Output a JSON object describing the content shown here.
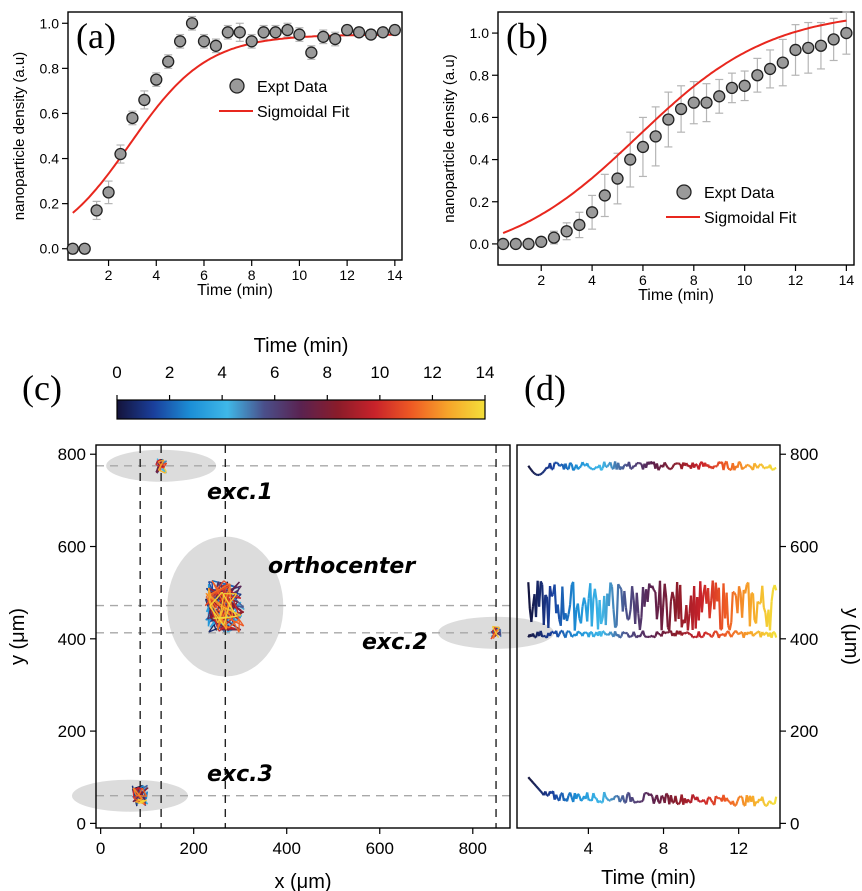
{
  "chart_data": [
    {
      "panel": "(a)",
      "type": "scatter",
      "xlabel": "Time (min)",
      "ylabel": "nanoparticle density (a.u)",
      "xlim": [
        0.3,
        14.3
      ],
      "ylim": [
        -0.05,
        1.05
      ],
      "xticks": [
        2,
        4,
        6,
        8,
        10,
        12,
        14
      ],
      "yticks": [
        0.0,
        0.2,
        0.4,
        0.6,
        0.8,
        1.0
      ],
      "ytick_labels": [
        "0.0",
        "0.2",
        "0.4",
        "0.6",
        "0.8",
        "1.0"
      ],
      "legend": [
        "Expt Data",
        "Sigmoidal Fit"
      ],
      "legend_position": "right",
      "series": [
        {
          "name": "Expt Data",
          "x": [
            0.5,
            1.0,
            1.5,
            2.0,
            2.5,
            3.0,
            3.5,
            4.0,
            4.5,
            5.0,
            5.5,
            6.0,
            6.5,
            7.0,
            7.5,
            8.0,
            8.5,
            9.0,
            9.5,
            10.0,
            10.5,
            11.0,
            11.5,
            12.0,
            12.5,
            13.0,
            13.5,
            14.0
          ],
          "y": [
            0.0,
            0.0,
            0.17,
            0.25,
            0.42,
            0.58,
            0.66,
            0.75,
            0.83,
            0.92,
            1.0,
            0.92,
            0.9,
            0.96,
            0.96,
            0.92,
            0.96,
            0.96,
            0.97,
            0.95,
            0.87,
            0.94,
            0.93,
            0.97,
            0.96,
            0.95,
            0.96,
            0.97
          ],
          "err": [
            0.01,
            0.02,
            0.04,
            0.05,
            0.04,
            0.03,
            0.04,
            0.03,
            0.03,
            0.03,
            0.03,
            0.03,
            0.03,
            0.03,
            0.04,
            0.03,
            0.03,
            0.03,
            0.03,
            0.03,
            0.03,
            0.03,
            0.03,
            0.02,
            0.02,
            0.02,
            0.02,
            0.02
          ]
        },
        {
          "name": "Sigmoidal Fit",
          "fit": {
            "base": -0.02,
            "max": 0.95,
            "x0": 2.9,
            "rate": 0.62
          }
        }
      ]
    },
    {
      "panel": "(b)",
      "type": "scatter",
      "xlabel": "Time (min)",
      "ylabel": "nanoparticle density (a.u)",
      "xlim": [
        0.3,
        14.3
      ],
      "ylim": [
        -0.1,
        1.1
      ],
      "xticks": [
        2,
        4,
        6,
        8,
        10,
        12,
        14
      ],
      "yticks": [
        0.0,
        0.2,
        0.4,
        0.6,
        0.8,
        1.0
      ],
      "ytick_labels": [
        "0.0",
        "0.2",
        "0.4",
        "0.6",
        "0.8",
        "1.0"
      ],
      "legend": [
        "Expt Data",
        "Sigmoidal Fit"
      ],
      "legend_position": "bottom-right",
      "series": [
        {
          "name": "Expt Data",
          "x": [
            0.5,
            1.0,
            1.5,
            2.0,
            2.5,
            3.0,
            3.5,
            4.0,
            4.5,
            5.0,
            5.5,
            6.0,
            6.5,
            7.0,
            7.5,
            8.0,
            8.5,
            9.0,
            9.5,
            10.0,
            10.5,
            11.0,
            11.5,
            12.0,
            12.5,
            13.0,
            13.5,
            14.0
          ],
          "y": [
            0.0,
            0.0,
            0.0,
            0.01,
            0.03,
            0.06,
            0.09,
            0.15,
            0.23,
            0.31,
            0.4,
            0.46,
            0.51,
            0.59,
            0.64,
            0.67,
            0.67,
            0.7,
            0.74,
            0.75,
            0.8,
            0.83,
            0.86,
            0.92,
            0.93,
            0.94,
            0.97,
            1.0
          ],
          "err": [
            0.01,
            0.01,
            0.01,
            0.02,
            0.03,
            0.04,
            0.06,
            0.08,
            0.1,
            0.12,
            0.13,
            0.14,
            0.14,
            0.13,
            0.11,
            0.1,
            0.09,
            0.08,
            0.07,
            0.07,
            0.08,
            0.09,
            0.11,
            0.12,
            0.12,
            0.11,
            0.1,
            0.1
          ]
        },
        {
          "name": "Sigmoidal Fit",
          "fit": {
            "base": -0.09,
            "max": 1.11,
            "x0": 5.8,
            "rate": 0.38
          }
        }
      ]
    },
    {
      "panel": "(c)",
      "type": "line",
      "xlabel": "x (μm)",
      "ylabel": "y (μm)",
      "xlim": [
        -10,
        880
      ],
      "ylim": [
        -10,
        820
      ],
      "xticks": [
        0,
        200,
        400,
        600,
        800
      ],
      "yticks": [
        0,
        200,
        400,
        600,
        800
      ],
      "colorbar": {
        "label": "Time (min)",
        "ticks": [
          0,
          2,
          4,
          6,
          8,
          10,
          12,
          14
        ],
        "range": [
          0,
          14
        ]
      },
      "annotations": [
        "exc.1",
        "orthocenter",
        "exc.2",
        "exc.3"
      ],
      "guide_lines_x": [
        85,
        130,
        268,
        850
      ],
      "guide_lines_y": [
        775,
        472,
        413,
        60
      ],
      "clusters": [
        {
          "label": "exc.1",
          "x": 130,
          "y": 775
        },
        {
          "label": "orthocenter",
          "x": 268,
          "y": 470
        },
        {
          "label": "exc.2",
          "x": 850,
          "y": 413
        },
        {
          "label": "exc.3",
          "x": 85,
          "y": 60
        }
      ]
    },
    {
      "panel": "(d)",
      "type": "line",
      "xlabel": "Time (min)",
      "ylabel": "y (μm)",
      "xlim": [
        0.2,
        14.2
      ],
      "ylim": [
        -10,
        820
      ],
      "xticks": [
        4,
        8,
        12
      ],
      "yticks": [
        0,
        200,
        400,
        600,
        800
      ],
      "series": [
        {
          "label": "exc.1",
          "y_mean": 775
        },
        {
          "label": "orthocenter",
          "y_mean": 472
        },
        {
          "label": "exc.2",
          "y_mean": 410
        },
        {
          "label": "exc.3",
          "y_mean": 60
        }
      ]
    }
  ],
  "colors": {
    "fit_line": "#e8271e",
    "marker_fill": "#9a9a9a",
    "marker_stroke": "#222222",
    "error_bar": "#b5b5b5",
    "cluster_fill": "#dcdcdc",
    "guide_vertical": "#222222",
    "guide_horizontal": "#a8a8a8",
    "colormap": [
      "#14133a",
      "#1a3f9c",
      "#1c8fd6",
      "#3fb8e8",
      "#4a4f8a",
      "#5a2250",
      "#8a1c2a",
      "#c8222a",
      "#ee5a24",
      "#f7a52a",
      "#f3df3a"
    ]
  }
}
